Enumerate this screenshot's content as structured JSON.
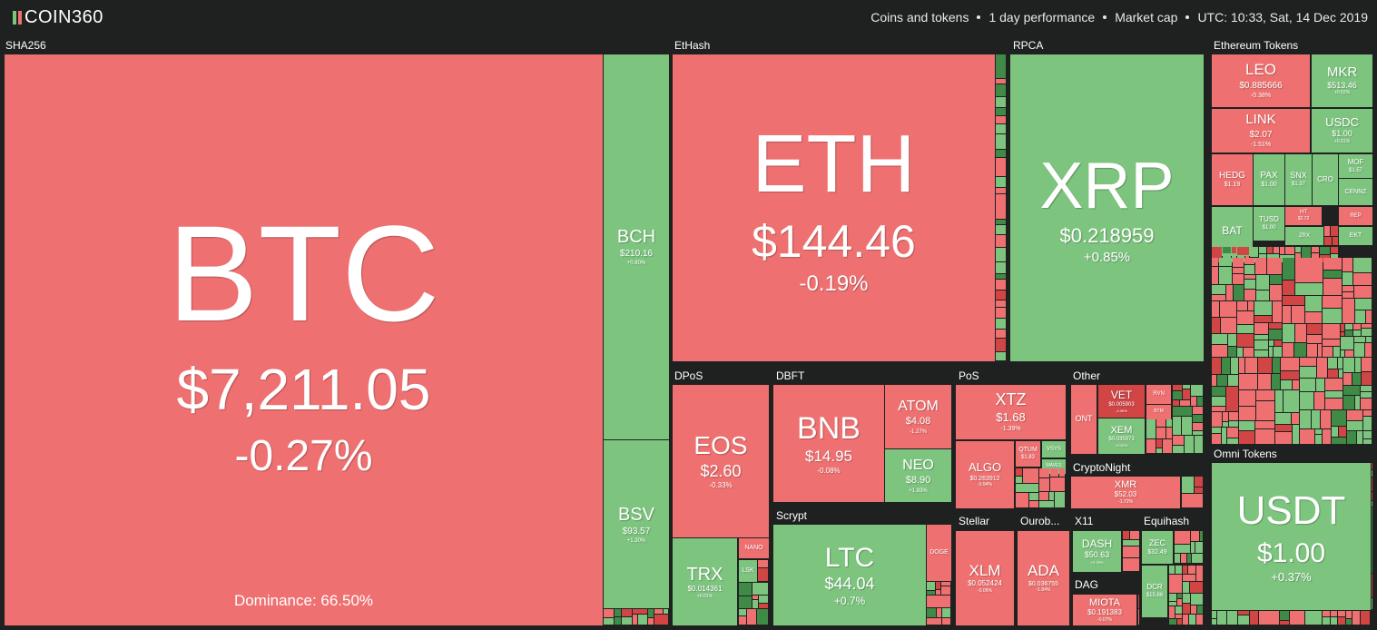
{
  "header": {
    "logo": "COIN360",
    "filters": [
      "Coins and tokens",
      "1 day performance",
      "Market cap",
      "UTC: 10:33, Sat, 14 Dec 2019"
    ]
  },
  "dominance": "Dominance: 66.50%",
  "groups": [
    {
      "name": "SHA256",
      "tiles": [
        {
          "symbol": "BTC",
          "price": "$7,211.05",
          "change": "-0.27%"
        },
        {
          "symbol": "BCH",
          "price": "$210.16",
          "change": "+0.80%"
        },
        {
          "symbol": "BSV",
          "price": "$93.57",
          "change": "+1.30%"
        }
      ]
    },
    {
      "name": "EtHash",
      "tiles": [
        {
          "symbol": "ETH",
          "price": "$144.46",
          "change": "-0.19%"
        }
      ]
    },
    {
      "name": "RPCA",
      "tiles": [
        {
          "symbol": "XRP",
          "price": "$0.218959",
          "change": "+0.85%"
        }
      ]
    },
    {
      "name": "Ethereum Tokens",
      "tiles": [
        {
          "symbol": "LEO",
          "price": "$0.885666",
          "change": "-0.38%"
        },
        {
          "symbol": "MKR",
          "price": "$513.46",
          "change": "+0.52%"
        },
        {
          "symbol": "LINK",
          "price": "$2.07",
          "change": "-1.51%"
        },
        {
          "symbol": "USDC",
          "price": "$1.00",
          "change": "+0.31%"
        },
        {
          "symbol": "HEDG",
          "price": "$1.19"
        },
        {
          "symbol": "PAX",
          "price": "$1.00"
        },
        {
          "symbol": "SNX",
          "price": "$1.37"
        },
        {
          "symbol": "CRO"
        },
        {
          "symbol": "MOF",
          "price": "$1.57"
        },
        {
          "symbol": "CENNZ"
        },
        {
          "symbol": "BAT"
        },
        {
          "symbol": "TUSD",
          "price": "$1.00"
        },
        {
          "symbol": "HT",
          "price": "$2.72"
        },
        {
          "symbol": "REP"
        },
        {
          "symbol": "ZRX"
        },
        {
          "symbol": "EKT"
        }
      ]
    },
    {
      "name": "DPoS",
      "tiles": [
        {
          "symbol": "EOS",
          "price": "$2.60",
          "change": "-0.33%"
        },
        {
          "symbol": "TRX",
          "price": "$0.014361",
          "change": "+0.01%"
        },
        {
          "symbol": "NANO"
        },
        {
          "symbol": "LSK"
        }
      ]
    },
    {
      "name": "DBFT",
      "tiles": [
        {
          "symbol": "BNB",
          "price": "$14.95",
          "change": "-0.08%"
        },
        {
          "symbol": "ATOM",
          "price": "$4.08",
          "change": "-1.27%"
        },
        {
          "symbol": "NEO",
          "price": "$8.90",
          "change": "+1.93%"
        }
      ]
    },
    {
      "name": "Scrypt",
      "tiles": [
        {
          "symbol": "LTC",
          "price": "$44.04",
          "change": "+0.7%"
        },
        {
          "symbol": "DOGE"
        }
      ]
    },
    {
      "name": "PoS",
      "tiles": [
        {
          "symbol": "XTZ",
          "price": "$1.68",
          "change": "-1.39%"
        },
        {
          "symbol": "ALGO",
          "price": "$0.263912",
          "change": "-0.94%"
        },
        {
          "symbol": "QTUM",
          "price": "$1.83"
        },
        {
          "symbol": "VSYS"
        },
        {
          "symbol": "WAVES"
        }
      ]
    },
    {
      "name": "Other",
      "tiles": [
        {
          "symbol": "ONT"
        },
        {
          "symbol": "VET",
          "price": "$0.005903",
          "change": "-4.06%"
        },
        {
          "symbol": "XEM",
          "price": "$0.035973",
          "change": "+0.62%"
        },
        {
          "symbol": "RVN"
        },
        {
          "symbol": "BTM"
        }
      ]
    },
    {
      "name": "CryptoNight",
      "tiles": [
        {
          "symbol": "XMR",
          "price": "$52.03",
          "change": "-1.72%"
        }
      ]
    },
    {
      "name": "Stellar",
      "tiles": [
        {
          "symbol": "XLM",
          "price": "$0.052424",
          "change": "-0.06%"
        }
      ]
    },
    {
      "name": "Ourob...",
      "tiles": [
        {
          "symbol": "ADA",
          "price": "$0.036755",
          "change": "-1.84%"
        }
      ]
    },
    {
      "name": "X11",
      "tiles": [
        {
          "symbol": "DASH",
          "price": "$50.63",
          "change": "+0.78%"
        }
      ]
    },
    {
      "name": "DAG",
      "tiles": [
        {
          "symbol": "MIOTA",
          "price": "$0.191383",
          "change": "-0.07%"
        }
      ]
    },
    {
      "name": "Equihash",
      "tiles": [
        {
          "symbol": "ZEC",
          "price": "$32.49"
        },
        {
          "symbol": "DCR",
          "price": "$15.86"
        }
      ]
    },
    {
      "name": "Omni Tokens",
      "tiles": [
        {
          "symbol": "USDT",
          "price": "$1.00",
          "change": "+0.37%"
        }
      ]
    }
  ]
}
